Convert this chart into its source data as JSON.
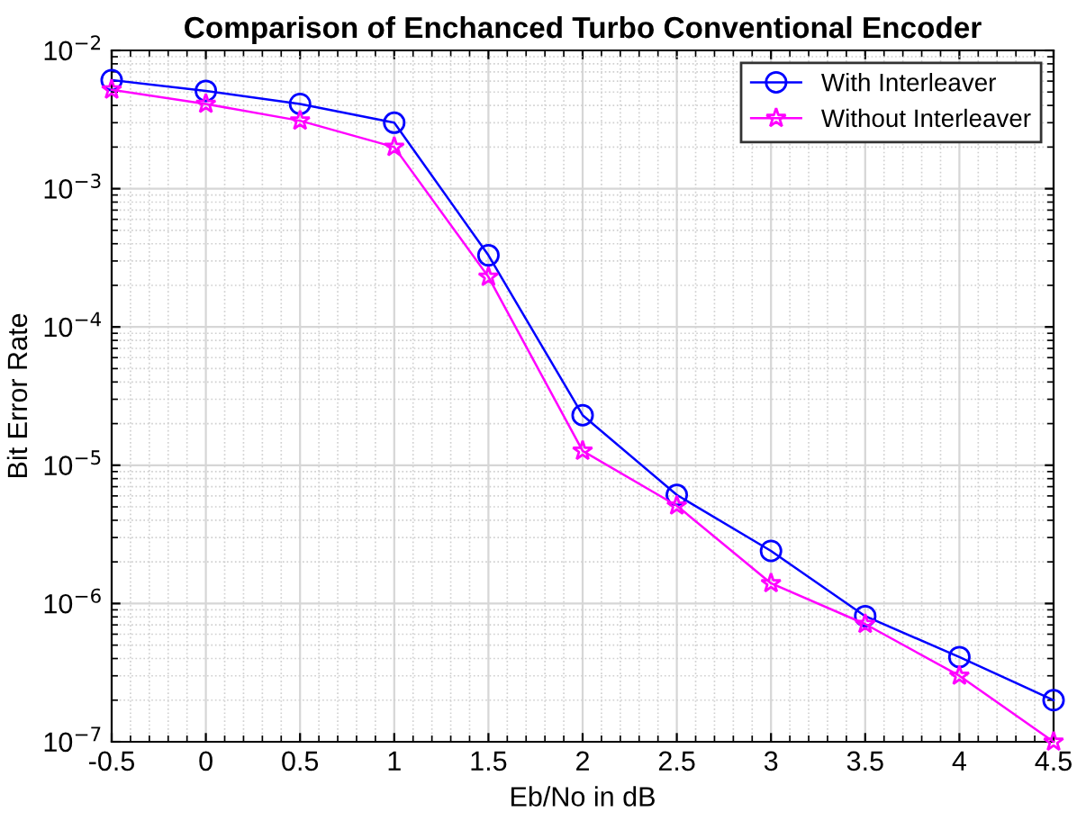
{
  "chart_data": {
    "type": "line",
    "title": "Comparison of Enchanced Turbo Conventional Encoder",
    "xlabel": "Eb/No in dB",
    "ylabel": "Bit Error Rate",
    "x": [
      -0.5,
      0,
      0.5,
      1,
      1.5,
      2,
      2.5,
      3,
      3.5,
      4,
      4.5
    ],
    "series": [
      {
        "name": "With Interleaver",
        "color": "#0000ff",
        "marker": "circle",
        "values": [
          0.0061,
          0.0051,
          0.0041,
          0.003,
          0.00033,
          2.3e-05,
          6.1e-06,
          2.4e-06,
          8.1e-07,
          4.1e-07,
          2e-07
        ]
      },
      {
        "name": "Without Interleaver",
        "color": "#ff00ff",
        "marker": "star",
        "values": [
          0.0052,
          0.0041,
          0.0031,
          0.002,
          0.00023,
          1.27e-05,
          5.1e-06,
          1.4e-06,
          7.1e-07,
          3e-07,
          1e-07
        ]
      }
    ],
    "log": "y",
    "xlim": [
      -0.5,
      4.5
    ],
    "xticks": [
      -0.5,
      0,
      0.5,
      1,
      1.5,
      2,
      2.5,
      3,
      3.5,
      4,
      4.5
    ],
    "ylim": [
      1e-07,
      0.01
    ],
    "yticks": [
      {
        "value": 1e-07,
        "label": "10$^{−7}$"
      },
      {
        "value": 1e-06,
        "label": "10$^{−6}$"
      },
      {
        "value": 1e-05,
        "label": "10$^{−5}$"
      },
      {
        "value": 0.0001,
        "label": "10$^{−4}$"
      },
      {
        "value": 0.001,
        "label": "10$^{−3}$"
      },
      {
        "value": 0.01,
        "label": "10$^{−2}$"
      }
    ],
    "grid": true,
    "legend": "top right",
    "line_style": "solid"
  }
}
